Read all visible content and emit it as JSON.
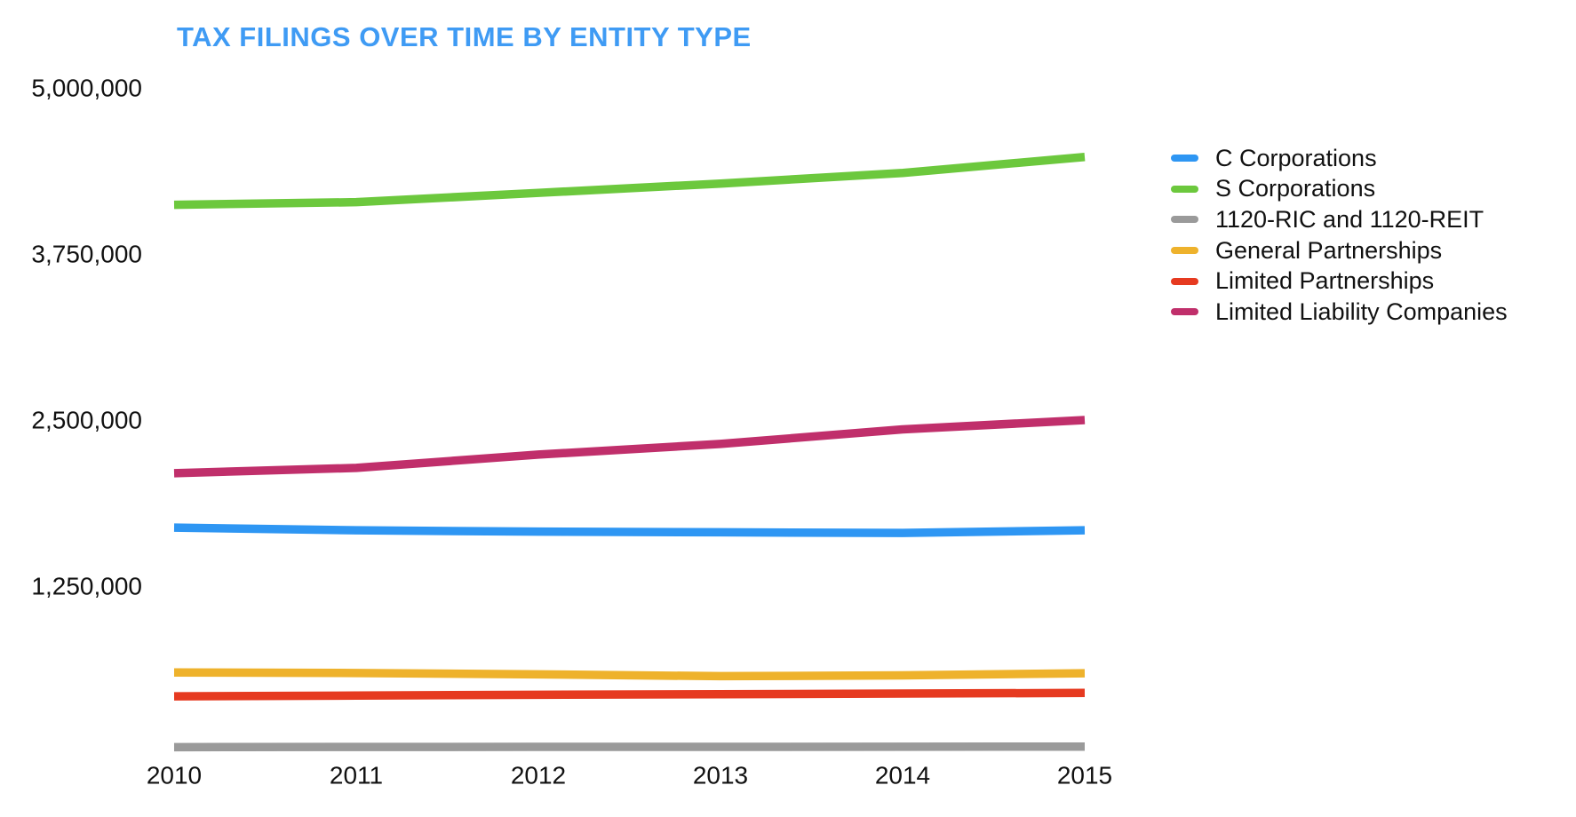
{
  "title": {
    "text": "TAX FILINGS OVER TIME BY ENTITY TYPE",
    "color": "#3f9bf4"
  },
  "axis": {
    "text_color": "#111111"
  },
  "chart_data": {
    "type": "line",
    "title": "TAX FILINGS OVER TIME BY ENTITY TYPE",
    "xlabel": "",
    "ylabel": "",
    "categories": [
      "2010",
      "2011",
      "2012",
      "2013",
      "2014",
      "2015"
    ],
    "y_tick_labels": [
      "5,000,000",
      "3,750,000",
      "2,500,000",
      "1,250,000"
    ],
    "y_tick_values": [
      5000000,
      3750000,
      2500000,
      1250000
    ],
    "ylim": [
      0,
      5000000
    ],
    "grid": false,
    "legend_position": "right",
    "line_width": 9.5,
    "series": [
      {
        "name": "C Corporations",
        "color": "#2e96f3",
        "values": [
          1690000,
          1670000,
          1660000,
          1655000,
          1650000,
          1670000
        ]
      },
      {
        "name": "S Corporations",
        "color": "#6cc83d",
        "values": [
          4120000,
          4140000,
          4210000,
          4280000,
          4360000,
          4480000
        ]
      },
      {
        "name": "1120-RIC and 1120-REIT",
        "color": "#9a9a9a",
        "values": [
          38000,
          39000,
          40000,
          40000,
          41000,
          42000
        ]
      },
      {
        "name": "General Partnerships",
        "color": "#eeb22c",
        "values": [
          600000,
          596000,
          586000,
          572000,
          578000,
          594000
        ]
      },
      {
        "name": "Limited Partnerships",
        "color": "#e63a20",
        "values": [
          420000,
          426000,
          432000,
          436000,
          441000,
          446000
        ]
      },
      {
        "name": "Limited Liability Companies",
        "color": "#c02f6b",
        "values": [
          2100000,
          2140000,
          2240000,
          2320000,
          2430000,
          2500000
        ]
      }
    ]
  }
}
